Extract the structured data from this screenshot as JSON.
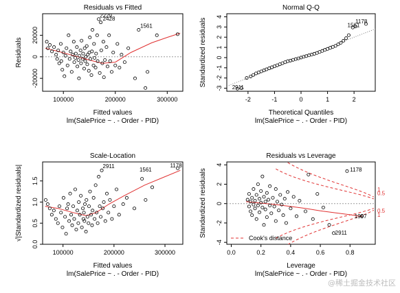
{
  "chart_data": [
    {
      "type": "scatter",
      "title": "Residuals vs Fitted",
      "xlabel": "Fitted values",
      "sublabel": "lm(SalePrice ~ . - Order - PID)",
      "ylabel": "Residuals",
      "xlim": [
        60000,
        330000
      ],
      "ylim": [
        -32000,
        40000
      ],
      "xticks": [
        100000,
        200000,
        300000
      ],
      "xtick_labels": [
        "100000",
        "200000",
        "300000"
      ],
      "yticks": [
        -20000,
        0,
        20000
      ],
      "ytick_labels": [
        "-20000",
        "0",
        "20000"
      ],
      "refline": {
        "type": "h",
        "value": 0
      },
      "smooth": [
        [
          65000,
          8000
        ],
        [
          90000,
          5000
        ],
        [
          120000,
          1000
        ],
        [
          150000,
          -3000
        ],
        [
          175000,
          -6000
        ],
        [
          200000,
          -5000
        ],
        [
          230000,
          4000
        ],
        [
          270000,
          13000
        ],
        [
          300000,
          18000
        ],
        [
          325000,
          22000
        ]
      ],
      "labels": [
        {
          "text": "2229",
          "x": 170000,
          "y": 36500
        },
        {
          "text": "2428",
          "x": 176000,
          "y": 33500
        },
        {
          "text": "1561",
          "x": 248000,
          "y": 27000
        }
      ],
      "points": [
        [
          68000,
          14000
        ],
        [
          70000,
          8000
        ],
        [
          74000,
          11000
        ],
        [
          78000,
          5000
        ],
        [
          82000,
          9000
        ],
        [
          86000,
          2000
        ],
        [
          88000,
          -2000
        ],
        [
          90000,
          6000
        ],
        [
          92000,
          -6000
        ],
        [
          95000,
          12000
        ],
        [
          96000,
          -4000
        ],
        [
          98000,
          -12000
        ],
        [
          100000,
          4000
        ],
        [
          102000,
          -18000
        ],
        [
          104000,
          1000
        ],
        [
          106000,
          8000
        ],
        [
          108000,
          -8000
        ],
        [
          110000,
          20000
        ],
        [
          112000,
          -2000
        ],
        [
          114000,
          5000
        ],
        [
          116000,
          -14000
        ],
        [
          118000,
          2000
        ],
        [
          120000,
          14000
        ],
        [
          121000,
          -5000
        ],
        [
          123000,
          -1000
        ],
        [
          124000,
          3000
        ],
        [
          126000,
          9000
        ],
        [
          127000,
          -9000
        ],
        [
          129000,
          -3000
        ],
        [
          130000,
          -20000
        ],
        [
          131000,
          1000
        ],
        [
          133000,
          6000
        ],
        [
          134000,
          -6000
        ],
        [
          135000,
          15000
        ],
        [
          137000,
          -2000
        ],
        [
          138000,
          3000
        ],
        [
          140000,
          -11000
        ],
        [
          141000,
          8000
        ],
        [
          142000,
          -4000
        ],
        [
          143000,
          0
        ],
        [
          145000,
          10000
        ],
        [
          146000,
          -7000
        ],
        [
          147000,
          2000
        ],
        [
          149000,
          -13000
        ],
        [
          150000,
          4000
        ],
        [
          151000,
          18000
        ],
        [
          152000,
          -2000
        ],
        [
          154000,
          -17000
        ],
        [
          155000,
          5000
        ],
        [
          156000,
          25000
        ],
        [
          158000,
          -8000
        ],
        [
          159000,
          12000
        ],
        [
          160000,
          -1000
        ],
        [
          162000,
          -10000
        ],
        [
          163000,
          3000
        ],
        [
          165000,
          20000
        ],
        [
          166000,
          -4000
        ],
        [
          168000,
          35000
        ],
        [
          170000,
          -15000
        ],
        [
          172000,
          32000
        ],
        [
          173000,
          6000
        ],
        [
          175000,
          -6000
        ],
        [
          177000,
          14000
        ],
        [
          178000,
          -19000
        ],
        [
          180000,
          -3000
        ],
        [
          183000,
          9000
        ],
        [
          185000,
          -9000
        ],
        [
          188000,
          20000
        ],
        [
          190000,
          -4000
        ],
        [
          193000,
          -14000
        ],
        [
          196000,
          4000
        ],
        [
          200000,
          -8000
        ],
        [
          204000,
          12000
        ],
        [
          208000,
          -10000
        ],
        [
          212000,
          2000
        ],
        [
          218000,
          -5000
        ],
        [
          225000,
          8000
        ],
        [
          238000,
          -20000
        ],
        [
          245000,
          25000
        ],
        [
          258000,
          -29000
        ],
        [
          262000,
          -14000
        ],
        [
          280000,
          20000
        ],
        [
          320000,
          21000
        ]
      ]
    },
    {
      "type": "scatter",
      "title": "Normal Q-Q",
      "xlabel": "Theoretical Quantiles",
      "sublabel": "lm(SalePrice ~ . - Order - PID)",
      "ylabel": "Standardized residuals",
      "xlim": [
        -2.8,
        2.8
      ],
      "ylim": [
        -3.3,
        4.3
      ],
      "xticks": [
        -2,
        -1,
        0,
        1,
        2
      ],
      "xtick_labels": [
        "-2",
        "-1",
        "0",
        "1",
        "2"
      ],
      "yticks": [
        -3,
        -2,
        -1,
        0,
        1,
        2,
        3,
        4
      ],
      "ytick_labels": [
        "-3",
        "-2",
        "-1",
        "0",
        "1",
        "2",
        "3",
        "4"
      ],
      "refline": {
        "type": "ab",
        "a": 0,
        "b": 1
      },
      "labels": [
        {
          "text": "1178",
          "x": 2.05,
          "y": 3.35
        },
        {
          "text": "1561",
          "x": 1.75,
          "y": 3.0
        },
        {
          "text": "2911",
          "x": -2.6,
          "y": -3.1
        }
      ],
      "points": [
        [
          -2.4,
          -3.05
        ],
        [
          -2.25,
          -3.0
        ],
        [
          -2.05,
          -2.0
        ],
        [
          -1.9,
          -1.85
        ],
        [
          -1.8,
          -1.7
        ],
        [
          -1.7,
          -1.55
        ],
        [
          -1.6,
          -1.45
        ],
        [
          -1.5,
          -1.35
        ],
        [
          -1.4,
          -1.25
        ],
        [
          -1.3,
          -1.15
        ],
        [
          -1.2,
          -1.05
        ],
        [
          -1.1,
          -0.95
        ],
        [
          -1.0,
          -0.85
        ],
        [
          -0.9,
          -0.75
        ],
        [
          -0.8,
          -0.65
        ],
        [
          -0.7,
          -0.55
        ],
        [
          -0.6,
          -0.45
        ],
        [
          -0.5,
          -0.35
        ],
        [
          -0.4,
          -0.3
        ],
        [
          -0.3,
          -0.22
        ],
        [
          -0.2,
          -0.15
        ],
        [
          -0.1,
          -0.08
        ],
        [
          0.0,
          0.0
        ],
        [
          0.1,
          0.08
        ],
        [
          0.2,
          0.15
        ],
        [
          0.3,
          0.22
        ],
        [
          0.4,
          0.3
        ],
        [
          0.5,
          0.37
        ],
        [
          0.6,
          0.45
        ],
        [
          0.7,
          0.55
        ],
        [
          0.8,
          0.65
        ],
        [
          0.9,
          0.75
        ],
        [
          1.0,
          0.85
        ],
        [
          1.1,
          0.95
        ],
        [
          1.2,
          1.05
        ],
        [
          1.3,
          1.15
        ],
        [
          1.4,
          1.3
        ],
        [
          1.5,
          1.45
        ],
        [
          1.6,
          1.65
        ],
        [
          1.7,
          1.9
        ],
        [
          1.8,
          2.2
        ],
        [
          1.95,
          2.95
        ],
        [
          2.05,
          3.05
        ],
        [
          2.45,
          3.3
        ]
      ]
    },
    {
      "type": "scatter",
      "title": "Scale-Location",
      "xlabel": "Fitted values",
      "sublabel": "lm(SalePrice ~ . - Order - PID)",
      "ylabel": "√|Standardized residuals|",
      "xlim": [
        60000,
        335000
      ],
      "ylim": [
        0,
        1.95
      ],
      "xticks": [
        100000,
        200000,
        300000
      ],
      "xtick_labels": [
        "100000",
        "200000",
        "300000"
      ],
      "yticks": [
        0.0,
        0.5,
        1.0,
        1.5
      ],
      "ytick_labels": [
        "0.0",
        "0.5",
        "1.0",
        "1.5"
      ],
      "smooth": [
        [
          65000,
          0.9
        ],
        [
          90000,
          0.85
        ],
        [
          120000,
          0.75
        ],
        [
          145000,
          0.68
        ],
        [
          165000,
          0.75
        ],
        [
          190000,
          0.95
        ],
        [
          220000,
          1.15
        ],
        [
          260000,
          1.4
        ],
        [
          300000,
          1.6
        ],
        [
          330000,
          1.75
        ]
      ],
      "labels": [
        {
          "text": "2911",
          "x": 178000,
          "y": 1.8
        },
        {
          "text": "1561",
          "x": 250000,
          "y": 1.72
        },
        {
          "text": "1178",
          "x": 310000,
          "y": 1.82
        }
      ],
      "points": [
        [
          66000,
          1.05
        ],
        [
          70000,
          0.95
        ],
        [
          74000,
          0.85
        ],
        [
          78000,
          0.7
        ],
        [
          82000,
          0.8
        ],
        [
          86000,
          0.6
        ],
        [
          90000,
          0.5
        ],
        [
          93000,
          0.9
        ],
        [
          96000,
          0.75
        ],
        [
          99000,
          0.4
        ],
        [
          101000,
          1.1
        ],
        [
          104000,
          0.65
        ],
        [
          106000,
          0.25
        ],
        [
          108000,
          0.85
        ],
        [
          110000,
          0.95
        ],
        [
          112000,
          0.55
        ],
        [
          114000,
          1.2
        ],
        [
          116000,
          0.7
        ],
        [
          118000,
          0.45
        ],
        [
          120000,
          0.9
        ],
        [
          122000,
          0.6
        ],
        [
          124000,
          1.3
        ],
        [
          126000,
          0.35
        ],
        [
          128000,
          0.8
        ],
        [
          130000,
          0.5
        ],
        [
          131000,
          1.0
        ],
        [
          133000,
          0.7
        ],
        [
          135000,
          1.15
        ],
        [
          137000,
          0.4
        ],
        [
          139000,
          0.85
        ],
        [
          140000,
          0.6
        ],
        [
          141000,
          0.75
        ],
        [
          142000,
          0.55
        ],
        [
          143000,
          0.95
        ],
        [
          145000,
          0.3
        ],
        [
          146000,
          1.05
        ],
        [
          148000,
          0.65
        ],
        [
          150000,
          0.5
        ],
        [
          151000,
          0.9
        ],
        [
          153000,
          1.25
        ],
        [
          155000,
          0.7
        ],
        [
          157000,
          0.45
        ],
        [
          158000,
          0.8
        ],
        [
          160000,
          1.1
        ],
        [
          162000,
          0.6
        ],
        [
          164000,
          1.4
        ],
        [
          166000,
          0.75
        ],
        [
          168000,
          0.5
        ],
        [
          170000,
          1.6
        ],
        [
          172000,
          0.9
        ],
        [
          174000,
          0.65
        ],
        [
          176000,
          1.75
        ],
        [
          178000,
          0.85
        ],
        [
          180000,
          1.0
        ],
        [
          183000,
          0.55
        ],
        [
          186000,
          1.2
        ],
        [
          189000,
          0.75
        ],
        [
          192000,
          1.05
        ],
        [
          196000,
          0.6
        ],
        [
          200000,
          0.9
        ],
        [
          205000,
          1.3
        ],
        [
          210000,
          0.7
        ],
        [
          218000,
          0.95
        ],
        [
          225000,
          1.1
        ],
        [
          240000,
          0.85
        ],
        [
          255000,
          1.55
        ],
        [
          262000,
          1.05
        ],
        [
          275000,
          1.35
        ],
        [
          325000,
          1.8
        ]
      ]
    },
    {
      "type": "scatter",
      "title": "Residuals vs Leverage",
      "xlabel": "Leverage",
      "sublabel": "lm(SalePrice ~ . - Order - PID)",
      "ylabel": "Standardized residuals",
      "xlim": [
        -0.03,
        0.97
      ],
      "ylim": [
        -4.2,
        4.3
      ],
      "xticks": [
        0.0,
        0.2,
        0.4,
        0.6,
        0.8
      ],
      "xtick_labels": [
        "0.0",
        "0.2",
        "0.4",
        "0.6",
        "0.8"
      ],
      "yticks": [
        -4,
        -2,
        0,
        2,
        4
      ],
      "ytick_labels": [
        "-4",
        "-2",
        "0",
        "2",
        "4"
      ],
      "refline": {
        "type": "h",
        "value": 0
      },
      "smooth": [
        [
          0.1,
          0.2
        ],
        [
          0.2,
          0.05
        ],
        [
          0.3,
          -0.1
        ],
        [
          0.4,
          -0.3
        ],
        [
          0.5,
          -0.5
        ],
        [
          0.6,
          -0.75
        ],
        [
          0.7,
          -0.95
        ],
        [
          0.8,
          -1.15
        ],
        [
          0.88,
          -1.35
        ]
      ],
      "cooks_levels": [
        "0.5",
        "1"
      ],
      "legend": {
        "text": "Cook's distance",
        "position": "bottom-left"
      },
      "labels": [
        {
          "text": "1178",
          "x": 0.8,
          "y": 3.3
        },
        {
          "text": "1997",
          "x": 0.83,
          "y": -1.5
        },
        {
          "text": "2911",
          "x": 0.7,
          "y": -3.2
        }
      ],
      "points": [
        [
          0.11,
          0.4
        ],
        [
          0.12,
          -0.3
        ],
        [
          0.12,
          1.0
        ],
        [
          0.13,
          -0.8
        ],
        [
          0.13,
          0.2
        ],
        [
          0.14,
          -1.2
        ],
        [
          0.14,
          0.6
        ],
        [
          0.15,
          -0.1
        ],
        [
          0.15,
          1.5
        ],
        [
          0.16,
          -0.5
        ],
        [
          0.16,
          0.3
        ],
        [
          0.17,
          -1.6
        ],
        [
          0.17,
          0.9
        ],
        [
          0.18,
          -0.2
        ],
        [
          0.18,
          2.0
        ],
        [
          0.19,
          0.5
        ],
        [
          0.19,
          -0.9
        ],
        [
          0.2,
          0.1
        ],
        [
          0.2,
          1.3
        ],
        [
          0.21,
          -0.4
        ],
        [
          0.21,
          2.8
        ],
        [
          0.22,
          -2.2
        ],
        [
          0.22,
          0.7
        ],
        [
          0.23,
          -0.6
        ],
        [
          0.23,
          0.2
        ],
        [
          0.24,
          1.1
        ],
        [
          0.24,
          -1.4
        ],
        [
          0.25,
          0.4
        ],
        [
          0.26,
          -0.2
        ],
        [
          0.26,
          1.8
        ],
        [
          0.27,
          -1.0
        ],
        [
          0.28,
          0.6
        ],
        [
          0.29,
          -0.3
        ],
        [
          0.3,
          1.5
        ],
        [
          0.3,
          -1.8
        ],
        [
          0.31,
          0.2
        ],
        [
          0.32,
          -0.7
        ],
        [
          0.33,
          0.9
        ],
        [
          0.34,
          -0.1
        ],
        [
          0.35,
          -1.2
        ],
        [
          0.36,
          0.5
        ],
        [
          0.37,
          -2.0
        ],
        [
          0.38,
          1.2
        ],
        [
          0.4,
          -0.5
        ],
        [
          0.42,
          0.7
        ],
        [
          0.44,
          -1.3
        ],
        [
          0.46,
          0.3
        ],
        [
          0.5,
          -0.8
        ],
        [
          0.52,
          3.0
        ],
        [
          0.55,
          -1.6
        ],
        [
          0.58,
          1.0
        ],
        [
          0.62,
          -0.4
        ],
        [
          0.66,
          -2.2
        ],
        [
          0.69,
          -3.05
        ],
        [
          0.78,
          3.35
        ],
        [
          0.88,
          -1.3
        ]
      ]
    }
  ]
}
